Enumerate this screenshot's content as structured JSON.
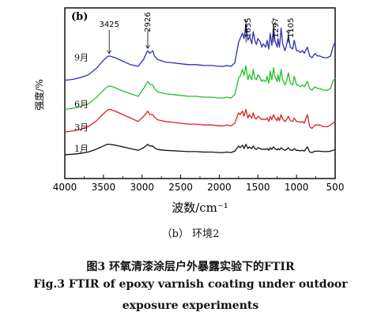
{
  "chart_data": {
    "type": "line",
    "panel_label": "(b)",
    "xlabel": "波数/cm⁻¹",
    "ylabel": "强度/%",
    "xlim": [
      4000,
      500
    ],
    "x_ticks": [
      "4000",
      "3500",
      "3000",
      "2500",
      "2000",
      "1500",
      "1000",
      "500"
    ],
    "peak_labels": [
      "3425",
      "2926",
      "1655",
      "1297",
      "1105"
    ],
    "peak_positions": [
      3425,
      2926,
      1655,
      1297,
      1105
    ],
    "series": [
      {
        "name": "9月",
        "color": "#2b2fb8",
        "x": [
          4000,
          3900,
          3800,
          3700,
          3600,
          3500,
          3450,
          3425,
          3350,
          3250,
          3150,
          3050,
          2980,
          2940,
          2926,
          2900,
          2860,
          2840,
          2800,
          2700,
          2600,
          2500,
          2400,
          2300,
          2200,
          2100,
          2000,
          1950,
          1900,
          1850,
          1800,
          1750,
          1730,
          1700,
          1680,
          1655,
          1630,
          1610,
          1600,
          1580,
          1560,
          1540,
          1520,
          1500,
          1470,
          1450,
          1430,
          1400,
          1380,
          1360,
          1340,
          1320,
          1297,
          1280,
          1250,
          1240,
          1220,
          1200,
          1180,
          1150,
          1130,
          1105,
          1080,
          1050,
          1030,
          1000,
          980,
          950,
          920,
          900,
          860,
          830,
          800,
          760,
          730,
          700,
          650,
          600,
          560,
          530,
          500
        ],
        "y": [
          24,
          25,
          27,
          30,
          37,
          47,
          51,
          52,
          50,
          46,
          42,
          40,
          48,
          56,
          58,
          55,
          58,
          52,
          48,
          45,
          44,
          43,
          42,
          42,
          41,
          41,
          40,
          40,
          41,
          40,
          44,
          68,
          72,
          78,
          72,
          88,
          70,
          74,
          72,
          66,
          80,
          70,
          65,
          72,
          68,
          62,
          66,
          62,
          70,
          60,
          78,
          64,
          85,
          70,
          62,
          72,
          62,
          84,
          66,
          58,
          64,
          75,
          62,
          60,
          70,
          58,
          58,
          56,
          58,
          55,
          62,
          52,
          50,
          55,
          52,
          52,
          50,
          50,
          52,
          62,
          68
        ]
      },
      {
        "name": "6月",
        "color": "#22c222",
        "x": [
          4000,
          3900,
          3800,
          3700,
          3600,
          3500,
          3450,
          3420,
          3350,
          3250,
          3150,
          3050,
          2980,
          2940,
          2926,
          2900,
          2860,
          2840,
          2800,
          2700,
          2600,
          2500,
          2400,
          2300,
          2200,
          2100,
          2000,
          1950,
          1900,
          1850,
          1800,
          1750,
          1730,
          1700,
          1680,
          1655,
          1630,
          1610,
          1600,
          1580,
          1560,
          1540,
          1520,
          1500,
          1470,
          1450,
          1430,
          1400,
          1380,
          1360,
          1340,
          1320,
          1297,
          1280,
          1250,
          1240,
          1220,
          1200,
          1180,
          1150,
          1130,
          1105,
          1080,
          1050,
          1030,
          1000,
          980,
          950,
          920,
          900,
          860,
          830,
          800,
          760,
          730,
          700,
          650,
          600,
          560,
          530,
          500
        ],
        "y": [
          16,
          17,
          19,
          22,
          29,
          38,
          42,
          43,
          41,
          37,
          34,
          31,
          40,
          46,
          48,
          45,
          44,
          40,
          36,
          34,
          33,
          32,
          31,
          31,
          30,
          30,
          29,
          29,
          30,
          29,
          33,
          52,
          54,
          62,
          55,
          66,
          50,
          56,
          54,
          50,
          62,
          52,
          50,
          56,
          52,
          48,
          50,
          48,
          54,
          46,
          60,
          50,
          64,
          54,
          48,
          56,
          48,
          62,
          50,
          44,
          48,
          58,
          46,
          44,
          54,
          44,
          44,
          42,
          44,
          42,
          48,
          40,
          38,
          42,
          40,
          40,
          38,
          38,
          40,
          48,
          52
        ]
      },
      {
        "name": "3月",
        "color": "#dd2020",
        "x": [
          4000,
          3900,
          3800,
          3700,
          3600,
          3500,
          3450,
          3420,
          3350,
          3250,
          3150,
          3050,
          2980,
          2940,
          2926,
          2900,
          2860,
          2840,
          2800,
          2700,
          2600,
          2500,
          2400,
          2300,
          2200,
          2100,
          2000,
          1950,
          1900,
          1850,
          1800,
          1750,
          1730,
          1700,
          1680,
          1655,
          1630,
          1610,
          1600,
          1580,
          1560,
          1540,
          1520,
          1500,
          1470,
          1450,
          1430,
          1400,
          1380,
          1360,
          1340,
          1320,
          1297,
          1280,
          1250,
          1240,
          1220,
          1200,
          1180,
          1150,
          1130,
          1105,
          1080,
          1050,
          1030,
          1000,
          980,
          950,
          920,
          900,
          860,
          830,
          800,
          760,
          730,
          700,
          650,
          600,
          560,
          530,
          500
        ],
        "y": [
          10,
          11,
          13,
          16,
          22,
          31,
          35,
          36,
          34,
          30,
          26,
          22,
          28,
          32,
          34,
          30,
          30,
          27,
          24,
          22,
          21,
          20,
          19,
          19,
          18,
          18,
          17,
          17,
          18,
          17,
          20,
          32,
          30,
          34,
          28,
          36,
          26,
          30,
          28,
          26,
          32,
          26,
          25,
          28,
          26,
          24,
          25,
          24,
          26,
          22,
          28,
          24,
          30,
          26,
          23,
          27,
          23,
          30,
          25,
          22,
          24,
          28,
          23,
          22,
          26,
          22,
          22,
          21,
          22,
          20,
          30,
          16,
          14,
          18,
          18,
          18,
          16,
          16,
          18,
          20,
          22
        ]
      },
      {
        "name": "1月",
        "color": "#111111",
        "x": [
          4000,
          3900,
          3800,
          3700,
          3600,
          3500,
          3450,
          3420,
          3350,
          3250,
          3150,
          3050,
          2980,
          2940,
          2926,
          2900,
          2860,
          2840,
          2800,
          2700,
          2600,
          2500,
          2400,
          2300,
          2200,
          2100,
          2000,
          1950,
          1900,
          1850,
          1800,
          1750,
          1730,
          1700,
          1680,
          1655,
          1630,
          1610,
          1600,
          1580,
          1560,
          1540,
          1520,
          1500,
          1470,
          1450,
          1430,
          1400,
          1380,
          1360,
          1340,
          1320,
          1297,
          1280,
          1250,
          1240,
          1220,
          1200,
          1180,
          1150,
          1130,
          1105,
          1080,
          1050,
          1030,
          1000,
          980,
          950,
          920,
          900,
          860,
          830,
          800,
          760,
          730,
          700,
          650,
          600,
          560,
          530,
          500
        ],
        "y": [
          2,
          2.5,
          3.5,
          5,
          8,
          12,
          14,
          14,
          13,
          11,
          9,
          7,
          10,
          13,
          14,
          12,
          12,
          10,
          8,
          7,
          6.5,
          6,
          5.5,
          5.5,
          5,
          5,
          4.5,
          4.5,
          5,
          4.5,
          6,
          12,
          10,
          13,
          9,
          14,
          9,
          11,
          10,
          9,
          12,
          9,
          8,
          10,
          9,
          8,
          8.5,
          8,
          9,
          7,
          10,
          8,
          11,
          9,
          7.5,
          9,
          7.5,
          10,
          8.5,
          7,
          8,
          10,
          7.5,
          7,
          9,
          7,
          7,
          6.5,
          7,
          6,
          11,
          5,
          4.5,
          6,
          6,
          6,
          5.5,
          5.5,
          6,
          7,
          8
        ]
      }
    ]
  },
  "caption": {
    "subfigure": "（b） 环境2",
    "title_cn": "图3 环氧清漆涂层户外暴露实验下的FTIR",
    "title_en_line1": "Fig.3 FTIR of epoxy varnish coating under outdoor",
    "title_en_line2": "exposure experiments"
  }
}
